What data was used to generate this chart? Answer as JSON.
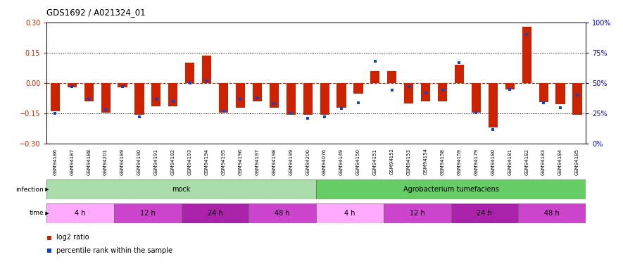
{
  "title": "GDS1692 / A021324_01",
  "samples": [
    "GSM94186",
    "GSM94187",
    "GSM94188",
    "GSM94201",
    "GSM94189",
    "GSM94190",
    "GSM94191",
    "GSM94192",
    "GSM94193",
    "GSM94194",
    "GSM94195",
    "GSM94196",
    "GSM94197",
    "GSM94198",
    "GSM94199",
    "GSM94200",
    "GSM94076",
    "GSM94149",
    "GSM94150",
    "GSM94151",
    "GSM94152",
    "GSM94153",
    "GSM94154",
    "GSM94158",
    "GSM94159",
    "GSM94179",
    "GSM94180",
    "GSM94181",
    "GSM94182",
    "GSM94183",
    "GSM94184",
    "GSM94185"
  ],
  "log2_ratio": [
    -0.14,
    -0.02,
    -0.09,
    -0.145,
    -0.02,
    -0.155,
    -0.115,
    -0.115,
    0.1,
    0.135,
    -0.145,
    -0.12,
    -0.09,
    -0.12,
    -0.155,
    -0.155,
    -0.155,
    -0.12,
    -0.05,
    0.06,
    0.06,
    -0.1,
    -0.09,
    -0.09,
    0.09,
    -0.145,
    -0.22,
    -0.03,
    0.28,
    -0.095,
    -0.105,
    -0.155
  ],
  "percentile": [
    25,
    47,
    37,
    28,
    47,
    22,
    37,
    35,
    50,
    52,
    27,
    37,
    38,
    33,
    25,
    21,
    22,
    29,
    34,
    68,
    44,
    47,
    42,
    44,
    67,
    26,
    12,
    45,
    90,
    34,
    30,
    40
  ],
  "bar_color": "#cc2200",
  "dot_color": "#1144cc",
  "zero_line_color": "#cc2200",
  "ylim_left": [
    -0.3,
    0.3
  ],
  "ylim_right": [
    0,
    100
  ],
  "yticks_left": [
    -0.3,
    -0.15,
    0,
    0.15,
    0.3
  ],
  "yticks_right": [
    0,
    25,
    50,
    75,
    100
  ],
  "infection_groups": [
    {
      "label": "mock",
      "start": 0,
      "end": 16,
      "color": "#aaeea a"
    },
    {
      "label": "Agrobacterium tumefaciens",
      "start": 16,
      "end": 32,
      "color": "#66cc66"
    }
  ],
  "time_colors": [
    "#ffaaff",
    "#dd44dd",
    "#cc22cc",
    "#dd44dd",
    "#ffaaff",
    "#dd44dd",
    "#cc22cc",
    "#dd44dd"
  ],
  "time_groups": [
    {
      "label": "4 h",
      "start": 0,
      "end": 4
    },
    {
      "label": "12 h",
      "start": 4,
      "end": 8
    },
    {
      "label": "24 h",
      "start": 8,
      "end": 12
    },
    {
      "label": "48 h",
      "start": 12,
      "end": 16
    },
    {
      "label": "4 h",
      "start": 16,
      "end": 20
    },
    {
      "label": "12 h",
      "start": 20,
      "end": 24
    },
    {
      "label": "24 h",
      "start": 24,
      "end": 28
    },
    {
      "label": "48 h",
      "start": 28,
      "end": 32
    }
  ],
  "background_color": "#ffffff",
  "axis_color_left": "#cc2200",
  "axis_color_right": "#0000cc"
}
